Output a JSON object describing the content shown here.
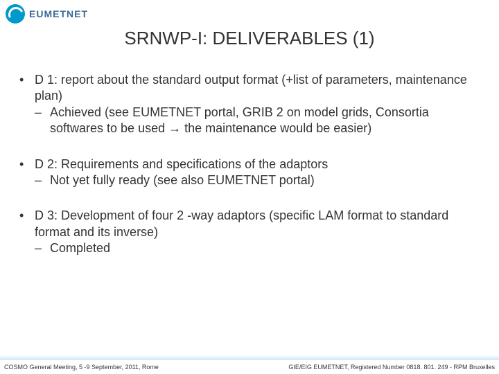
{
  "logo": {
    "text": "EUMETNET"
  },
  "title": "SRNWP-I: DELIVERABLES (1)",
  "bullets": [
    {
      "main": "D 1: report about the standard output format (+list of parameters, maintenance plan)",
      "sub": "Achieved (see EUMETNET portal, GRIB 2 on model grids, Consortia softwares to be used → the maintenance would be easier)"
    },
    {
      "main": "D 2: Requirements and specifications of the adaptors",
      "sub": "Not yet fully ready (see also EUMETNET portal)"
    },
    {
      "main": "D 3: Development of four 2 -way adaptors (specific LAM format to standard format and its inverse)",
      "sub": "Completed"
    }
  ],
  "footer": {
    "left": "COSMO General Meeting, 5 -9 September, 2011, Rome",
    "right": "GIE/EIG EUMETNET, Registered Number 0818. 801. 249 - RPM Bruxelles"
  },
  "colors": {
    "title": "#333333",
    "text": "#333333",
    "logo_brand": "#3a6a9a",
    "logo_circle": "#0099cc",
    "footer_border": "#99ccff",
    "background": "#ffffff"
  }
}
